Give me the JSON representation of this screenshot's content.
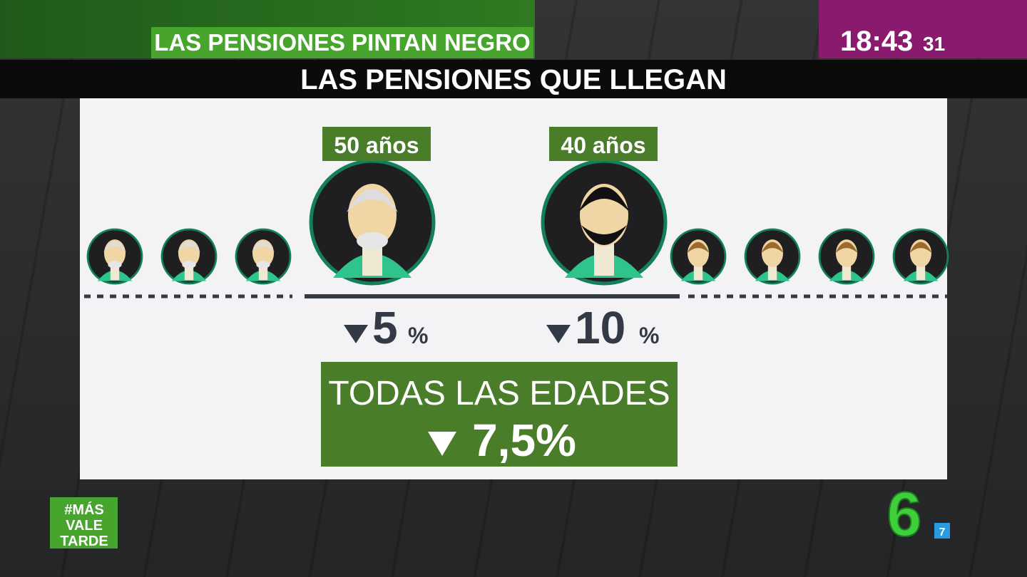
{
  "header": {
    "program_tag": "LAS PENSIONES PINTAN NEGRO",
    "clock": {
      "hours_minutes": "18:43",
      "seconds": "31"
    }
  },
  "title": "LAS PENSIONES QUE LLEGAN",
  "groups": [
    {
      "age_label": "50 años",
      "drop": {
        "value": "5",
        "unit": "%"
      }
    },
    {
      "age_label": "40 años",
      "drop": {
        "value": "10",
        "unit": "%"
      }
    }
  ],
  "summary": {
    "label": "TODAS LAS EDADES",
    "drop": "7,5%"
  },
  "logos": {
    "show": [
      "#MÁS",
      "VALE",
      "TARDE"
    ],
    "channel": "6",
    "channel_badge": "7"
  }
}
